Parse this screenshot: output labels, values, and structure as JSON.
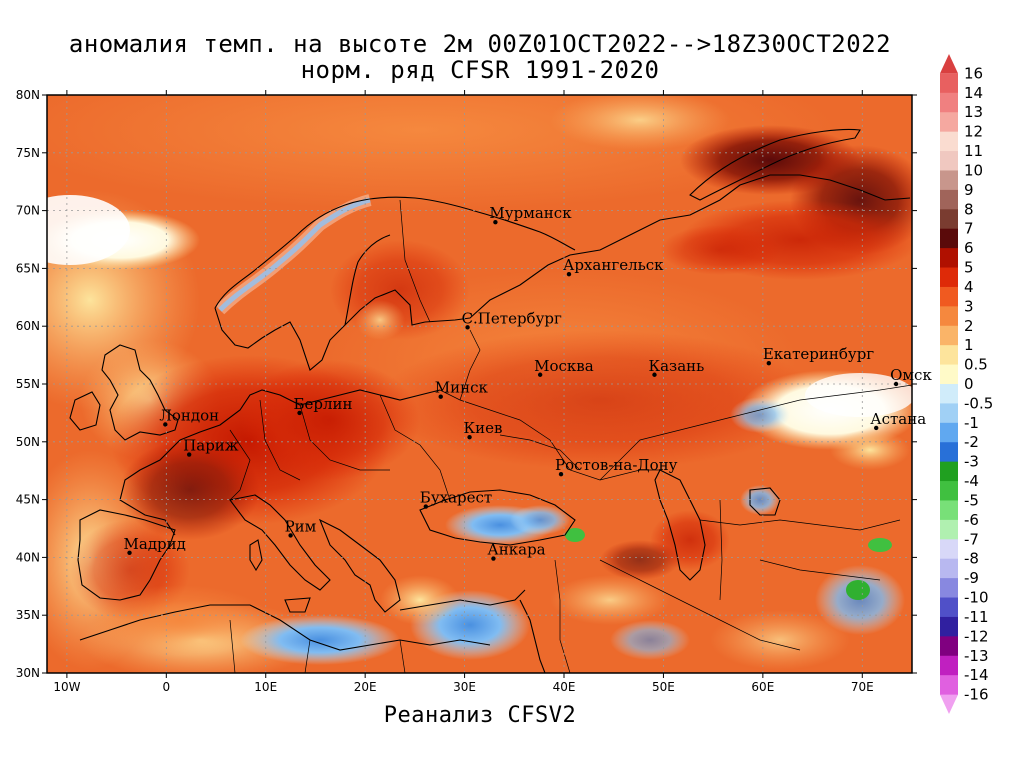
{
  "title": {
    "line1": "аномалия темп. на высоте 2м 00Z01OCT2022-->18Z30OCT2022",
    "line2": "норм. ряд CFSR 1991-2020"
  },
  "footer": "Реанализ CFSV2",
  "axes": {
    "x_ticks": [
      "10W",
      "0",
      "10E",
      "20E",
      "30E",
      "40E",
      "50E",
      "60E",
      "70E"
    ],
    "x_values": [
      -10,
      0,
      10,
      20,
      30,
      40,
      50,
      60,
      70
    ],
    "y_ticks": [
      "30N",
      "35N",
      "40N",
      "45N",
      "50N",
      "55N",
      "60N",
      "65N",
      "70N",
      "75N",
      "80N"
    ],
    "y_values": [
      30,
      35,
      40,
      45,
      50,
      55,
      60,
      65,
      70,
      75,
      80
    ],
    "lon_range": [
      -12,
      75
    ],
    "lat_range": [
      30,
      80
    ]
  },
  "cities": [
    {
      "name": "Мурманск",
      "lon": 33.1,
      "lat": 69.0
    },
    {
      "name": "Архангельск",
      "lon": 40.5,
      "lat": 64.5
    },
    {
      "name": "С.Петербург",
      "lon": 30.3,
      "lat": 59.9
    },
    {
      "name": "Москва",
      "lon": 37.6,
      "lat": 55.8
    },
    {
      "name": "Казань",
      "lon": 49.1,
      "lat": 55.8
    },
    {
      "name": "Екатеринбург",
      "lon": 60.6,
      "lat": 56.8
    },
    {
      "name": "Минск",
      "lon": 27.6,
      "lat": 53.9
    },
    {
      "name": "Берлин",
      "lon": 13.4,
      "lat": 52.5
    },
    {
      "name": "Лондон",
      "lon": -0.1,
      "lat": 51.5
    },
    {
      "name": "Париж",
      "lon": 2.3,
      "lat": 48.9
    },
    {
      "name": "Киев",
      "lon": 30.5,
      "lat": 50.4
    },
    {
      "name": "Омск",
      "lon": 73.4,
      "lat": 55.0
    },
    {
      "name": "Астана",
      "lon": 71.4,
      "lat": 51.2
    },
    {
      "name": "Ростов-на-Дону",
      "lon": 39.7,
      "lat": 47.2
    },
    {
      "name": "Бухарест",
      "lon": 26.1,
      "lat": 44.4
    },
    {
      "name": "Рим",
      "lon": 12.5,
      "lat": 41.9
    },
    {
      "name": "Мадрид",
      "lon": -3.7,
      "lat": 40.4
    },
    {
      "name": "Анкара",
      "lon": 32.9,
      "lat": 39.9
    }
  ],
  "colorbar": {
    "labels": [
      "16",
      "14",
      "13",
      "12",
      "11",
      "10",
      "9",
      "8",
      "7",
      "6",
      "5",
      "4",
      "3",
      "2",
      "1",
      "0.5",
      "0",
      "-0.5",
      "-1",
      "-2",
      "-3",
      "-4",
      "-5",
      "-6",
      "-7",
      "-8",
      "-9",
      "-10",
      "-11",
      "-12",
      "-13",
      "-14",
      "-16"
    ],
    "colors": [
      "#d94040",
      "#e86060",
      "#f08080",
      "#f5a8a0",
      "#fadcd0",
      "#f0c8c0",
      "#c8968c",
      "#a0645a",
      "#7a3c30",
      "#5a0a0a",
      "#b01000",
      "#de2a08",
      "#f05a20",
      "#f5883e",
      "#fab468",
      "#fde49c",
      "#fffac8",
      "#d0ecfa",
      "#a0d0f5",
      "#60a8f0",
      "#2870d8",
      "#20a020",
      "#40c040",
      "#78e078",
      "#b0f0b0",
      "#d8d8f8",
      "#b8b8f0",
      "#8888e0",
      "#5050c8",
      "#3020a0",
      "#800080",
      "#c020c0",
      "#e060e0",
      "#f0a0f0"
    ]
  }
}
